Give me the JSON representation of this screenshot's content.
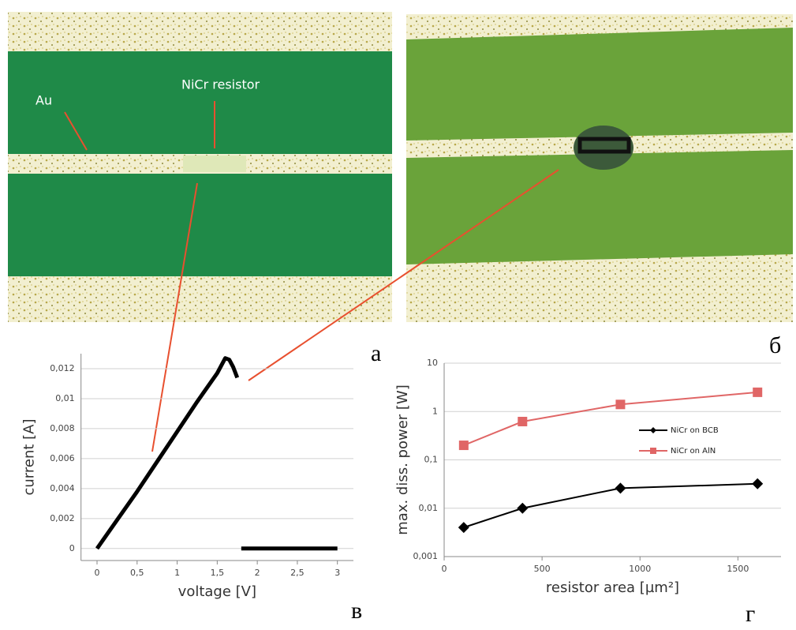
{
  "image_labels": [
    "Au",
    "NiCr resistor"
  ],
  "panel_labels": [
    "a",
    "б",
    "в",
    "г"
  ],
  "chart_data": [
    {
      "type": "line",
      "x_label": "voltage [V]",
      "y_label": "current [A]",
      "color": "#000000",
      "x": [
        0,
        0.25,
        0.5,
        0.75,
        1.0,
        1.25,
        1.5,
        1.6,
        1.65,
        1.7,
        1.75,
        1.78,
        1.8,
        2.4,
        3.0
      ],
      "values": [
        0,
        0.0019,
        0.0038,
        0.0058,
        0.0078,
        0.0098,
        0.0117,
        0.0127,
        0.0126,
        0.0121,
        0.0114,
        null,
        0,
        0,
        0
      ],
      "xlim": [
        -0.2,
        3.2
      ],
      "ylim": [
        -0.0008,
        0.013
      ],
      "xticks": [
        0,
        {
          "value": 0.5,
          "label": "0,5"
        },
        1,
        {
          "value": 1.5,
          "label": "1,5"
        },
        2,
        {
          "value": 2.5,
          "label": "2,5"
        },
        3
      ],
      "yticks": [
        0,
        {
          "value": 0.002,
          "label": "0,002"
        },
        {
          "value": 0.004,
          "label": "0,004"
        },
        {
          "value": 0.006,
          "label": "0,006"
        },
        {
          "value": 0.008,
          "label": "0,008"
        },
        {
          "value": 0.01,
          "label": "0,01"
        },
        {
          "value": 0.012,
          "label": "0,012"
        }
      ],
      "grid": true,
      "log_y": false
    },
    {
      "type": "line",
      "x_label": "resistor area [µm²]",
      "y_label": "max. diss. power [W]",
      "x": [
        100,
        400,
        900,
        1600
      ],
      "series": [
        {
          "name": "NiCr on BCB",
          "color": "#000000",
          "marker": "diamond",
          "values": [
            0.004,
            0.01,
            0.026,
            0.032
          ]
        },
        {
          "name": "NiCr on AlN",
          "color": "#e06666",
          "marker": "square",
          "values": [
            0.2,
            0.62,
            1.4,
            2.5
          ]
        }
      ],
      "xlim": [
        0,
        1720
      ],
      "ylim": [
        0.001,
        10
      ],
      "xticks": [
        0,
        500,
        1000,
        1500
      ],
      "yticks": [
        {
          "value": 0.001,
          "label": "0,001"
        },
        {
          "value": 0.01,
          "label": "0,01"
        },
        {
          "value": 0.1,
          "label": "0,1"
        },
        1,
        10
      ],
      "grid": true,
      "log_y": true,
      "legend": "inside-right"
    }
  ]
}
